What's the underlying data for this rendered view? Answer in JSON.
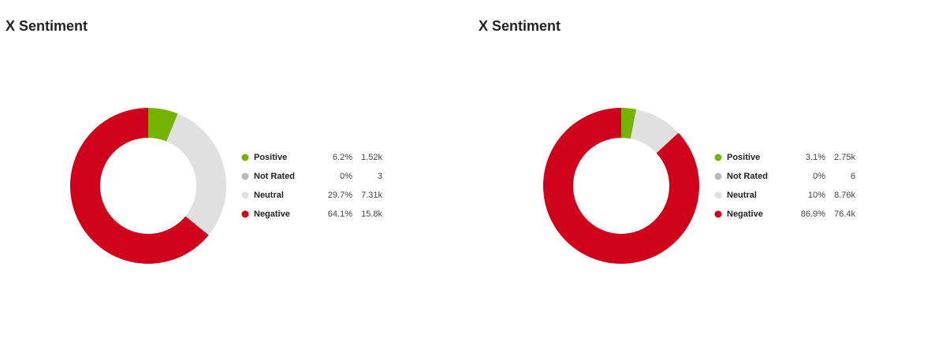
{
  "chart_data": [
    {
      "type": "donut",
      "title": "X Sentiment",
      "categories": [
        "Positive",
        "Not Rated",
        "Neutral",
        "Negative"
      ],
      "values": [
        6.2,
        0,
        29.7,
        64.1
      ],
      "value_labels": [
        "6.2%",
        "0%",
        "29.7%",
        "64.1%"
      ],
      "counts": [
        "1.52k",
        "3",
        "7.31k",
        "15.8k"
      ],
      "colors": [
        "#76b300",
        "#b8b8b8",
        "#e0e0e0",
        "#d0021b"
      ]
    },
    {
      "type": "donut",
      "title": "X Sentiment",
      "categories": [
        "Positive",
        "Not Rated",
        "Neutral",
        "Negative"
      ],
      "values": [
        3.1,
        0,
        10,
        86.9
      ],
      "value_labels": [
        "3.1%",
        "0%",
        "10%",
        "86.9%"
      ],
      "counts": [
        "2.75k",
        "6",
        "8.76k",
        "76.4k"
      ],
      "colors": [
        "#76b300",
        "#b8b8b8",
        "#e0e0e0",
        "#d0021b"
      ]
    }
  ]
}
